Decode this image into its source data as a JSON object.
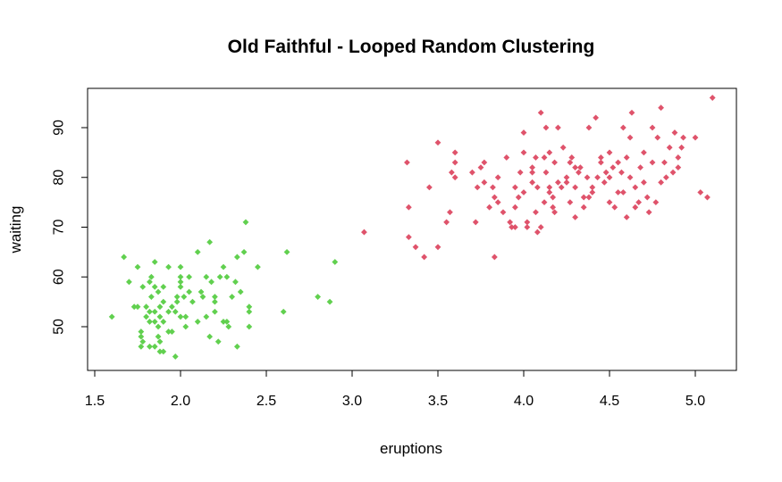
{
  "chart_data": {
    "type": "scatter",
    "title": "Old Faithful - Looped Random Clustering",
    "xlabel": "eruptions",
    "ylabel": "waiting",
    "xlim": [
      1.5,
      5.25
    ],
    "ylim": [
      41,
      97
    ],
    "xticks": [
      1.5,
      2.0,
      2.5,
      3.0,
      3.5,
      4.0,
      4.5,
      5.0
    ],
    "xtick_labels": [
      "1.5",
      "2.0",
      "2.5",
      "3.0",
      "3.5",
      "4.0",
      "4.5",
      "5.0"
    ],
    "yticks": [
      50,
      60,
      70,
      80,
      90
    ],
    "ytick_labels": [
      "50",
      "60",
      "70",
      "80",
      "90"
    ],
    "grid": false,
    "legend": "none",
    "series": [
      {
        "color": "#61D04F",
        "points": [
          [
            1.6,
            52
          ],
          [
            1.67,
            64
          ],
          [
            1.7,
            59
          ],
          [
            1.73,
            54
          ],
          [
            1.75,
            54
          ],
          [
            1.75,
            62
          ],
          [
            1.77,
            48
          ],
          [
            1.77,
            46
          ],
          [
            1.78,
            47
          ],
          [
            1.78,
            58
          ],
          [
            1.8,
            52
          ],
          [
            1.8,
            54
          ],
          [
            1.82,
            46
          ],
          [
            1.82,
            51
          ],
          [
            1.82,
            59
          ],
          [
            1.82,
            53
          ],
          [
            1.83,
            56
          ],
          [
            1.83,
            60
          ],
          [
            1.85,
            53
          ],
          [
            1.85,
            58
          ],
          [
            1.85,
            46
          ],
          [
            1.85,
            63
          ],
          [
            1.87,
            48
          ],
          [
            1.87,
            57
          ],
          [
            1.87,
            50
          ],
          [
            1.88,
            54
          ],
          [
            1.88,
            45
          ],
          [
            1.88,
            47
          ],
          [
            1.88,
            52
          ],
          [
            1.9,
            51
          ],
          [
            1.9,
            55
          ],
          [
            1.9,
            58
          ],
          [
            1.93,
            62
          ],
          [
            1.93,
            49
          ],
          [
            1.95,
            49
          ],
          [
            1.97,
            53
          ],
          [
            1.97,
            44
          ],
          [
            1.98,
            56
          ],
          [
            1.98,
            55
          ],
          [
            2.0,
            60
          ],
          [
            2.0,
            62
          ],
          [
            2.0,
            59
          ],
          [
            2.0,
            58
          ],
          [
            2.0,
            52
          ],
          [
            2.02,
            56
          ],
          [
            2.03,
            50
          ],
          [
            2.03,
            52
          ],
          [
            2.05,
            60
          ],
          [
            2.07,
            55
          ],
          [
            2.1,
            65
          ],
          [
            2.1,
            51
          ],
          [
            2.12,
            57
          ],
          [
            2.13,
            56
          ],
          [
            2.15,
            52
          ],
          [
            2.17,
            67
          ],
          [
            2.17,
            48
          ],
          [
            2.2,
            55
          ],
          [
            2.2,
            56
          ],
          [
            2.2,
            53
          ],
          [
            2.22,
            47
          ],
          [
            2.23,
            60
          ],
          [
            2.25,
            51
          ],
          [
            2.27,
            60
          ],
          [
            2.27,
            51
          ],
          [
            2.28,
            50
          ],
          [
            2.3,
            56
          ],
          [
            2.32,
            59
          ],
          [
            2.33,
            64
          ],
          [
            2.33,
            46
          ],
          [
            2.37,
            65
          ],
          [
            2.38,
            71
          ],
          [
            2.4,
            53
          ],
          [
            2.4,
            54
          ],
          [
            2.4,
            50
          ],
          [
            2.45,
            62
          ],
          [
            2.6,
            53
          ],
          [
            2.62,
            65
          ],
          [
            2.8,
            56
          ],
          [
            2.87,
            55
          ],
          [
            2.9,
            63
          ],
          [
            1.93,
            53
          ],
          [
            1.85,
            51
          ],
          [
            2.05,
            57
          ],
          [
            1.77,
            49
          ],
          [
            1.95,
            54
          ],
          [
            2.25,
            62
          ],
          [
            2.35,
            57
          ],
          [
            2.15,
            60
          ],
          [
            1.9,
            45
          ],
          [
            2.18,
            59
          ]
        ]
      },
      {
        "color": "#DF536B",
        "points": [
          [
            3.07,
            69
          ],
          [
            3.32,
            83
          ],
          [
            3.33,
            74
          ],
          [
            3.33,
            68
          ],
          [
            3.37,
            66
          ],
          [
            3.42,
            64
          ],
          [
            3.45,
            78
          ],
          [
            3.5,
            66
          ],
          [
            3.5,
            87
          ],
          [
            3.55,
            71
          ],
          [
            3.57,
            73
          ],
          [
            3.58,
            81
          ],
          [
            3.6,
            80
          ],
          [
            3.6,
            83
          ],
          [
            3.6,
            85
          ],
          [
            3.7,
            81
          ],
          [
            3.72,
            71
          ],
          [
            3.73,
            78
          ],
          [
            3.75,
            82
          ],
          [
            3.77,
            79
          ],
          [
            3.77,
            83
          ],
          [
            3.8,
            74
          ],
          [
            3.82,
            78
          ],
          [
            3.83,
            76
          ],
          [
            3.83,
            64
          ],
          [
            3.85,
            80
          ],
          [
            3.88,
            73
          ],
          [
            3.9,
            84
          ],
          [
            3.92,
            71
          ],
          [
            3.93,
            70
          ],
          [
            3.95,
            74
          ],
          [
            3.95,
            78
          ],
          [
            3.97,
            76
          ],
          [
            3.98,
            81
          ],
          [
            4.0,
            77
          ],
          [
            4.0,
            89
          ],
          [
            4.02,
            71
          ],
          [
            4.02,
            70
          ],
          [
            4.05,
            82
          ],
          [
            4.05,
            81
          ],
          [
            4.07,
            73
          ],
          [
            4.07,
            84
          ],
          [
            4.08,
            69
          ],
          [
            4.08,
            78
          ],
          [
            4.1,
            93
          ],
          [
            4.1,
            70
          ],
          [
            4.12,
            75
          ],
          [
            4.12,
            84
          ],
          [
            4.13,
            81
          ],
          [
            4.15,
            77
          ],
          [
            4.15,
            85
          ],
          [
            4.17,
            74
          ],
          [
            4.17,
            76
          ],
          [
            4.18,
            83
          ],
          [
            4.2,
            90
          ],
          [
            4.22,
            78
          ],
          [
            4.23,
            86
          ],
          [
            4.25,
            79
          ],
          [
            4.27,
            75
          ],
          [
            4.27,
            83
          ],
          [
            4.3,
            78
          ],
          [
            4.3,
            72
          ],
          [
            4.32,
            81
          ],
          [
            4.33,
            82
          ],
          [
            4.35,
            76
          ],
          [
            4.37,
            80
          ],
          [
            4.38,
            90
          ],
          [
            4.4,
            77
          ],
          [
            4.42,
            92
          ],
          [
            4.43,
            80
          ],
          [
            4.45,
            83
          ],
          [
            4.47,
            79
          ],
          [
            4.5,
            75
          ],
          [
            4.5,
            85
          ],
          [
            4.52,
            82
          ],
          [
            4.53,
            74
          ],
          [
            4.55,
            83
          ],
          [
            4.57,
            81
          ],
          [
            4.58,
            77
          ],
          [
            4.6,
            84
          ],
          [
            4.62,
            88
          ],
          [
            4.62,
            80
          ],
          [
            4.63,
            93
          ],
          [
            4.65,
            78
          ],
          [
            4.67,
            75
          ],
          [
            4.68,
            82
          ],
          [
            4.7,
            79
          ],
          [
            4.72,
            76
          ],
          [
            4.73,
            73
          ],
          [
            4.75,
            83
          ],
          [
            4.77,
            75
          ],
          [
            4.78,
            88
          ],
          [
            4.8,
            94
          ],
          [
            4.8,
            79
          ],
          [
            4.82,
            83
          ],
          [
            4.83,
            80
          ],
          [
            4.85,
            86
          ],
          [
            4.87,
            81
          ],
          [
            4.88,
            89
          ],
          [
            4.9,
            82
          ],
          [
            4.92,
            86
          ],
          [
            4.93,
            88
          ],
          [
            5.0,
            88
          ],
          [
            5.03,
            77
          ],
          [
            5.07,
            76
          ],
          [
            5.1,
            96
          ],
          [
            4.4,
            78
          ],
          [
            4.55,
            77
          ],
          [
            4.65,
            74
          ],
          [
            4.3,
            82
          ],
          [
            4.2,
            79
          ],
          [
            4.0,
            85
          ],
          [
            3.95,
            70
          ],
          [
            4.15,
            78
          ],
          [
            4.45,
            84
          ],
          [
            4.6,
            72
          ],
          [
            4.7,
            85
          ],
          [
            4.25,
            80
          ],
          [
            4.35,
            74
          ],
          [
            4.5,
            80
          ],
          [
            4.05,
            79
          ],
          [
            3.85,
            75
          ],
          [
            4.13,
            90
          ],
          [
            4.28,
            84
          ],
          [
            4.58,
            90
          ],
          [
            4.75,
            90
          ],
          [
            4.9,
            84
          ],
          [
            4.48,
            81
          ],
          [
            4.38,
            76
          ],
          [
            4.18,
            73
          ]
        ]
      }
    ]
  }
}
